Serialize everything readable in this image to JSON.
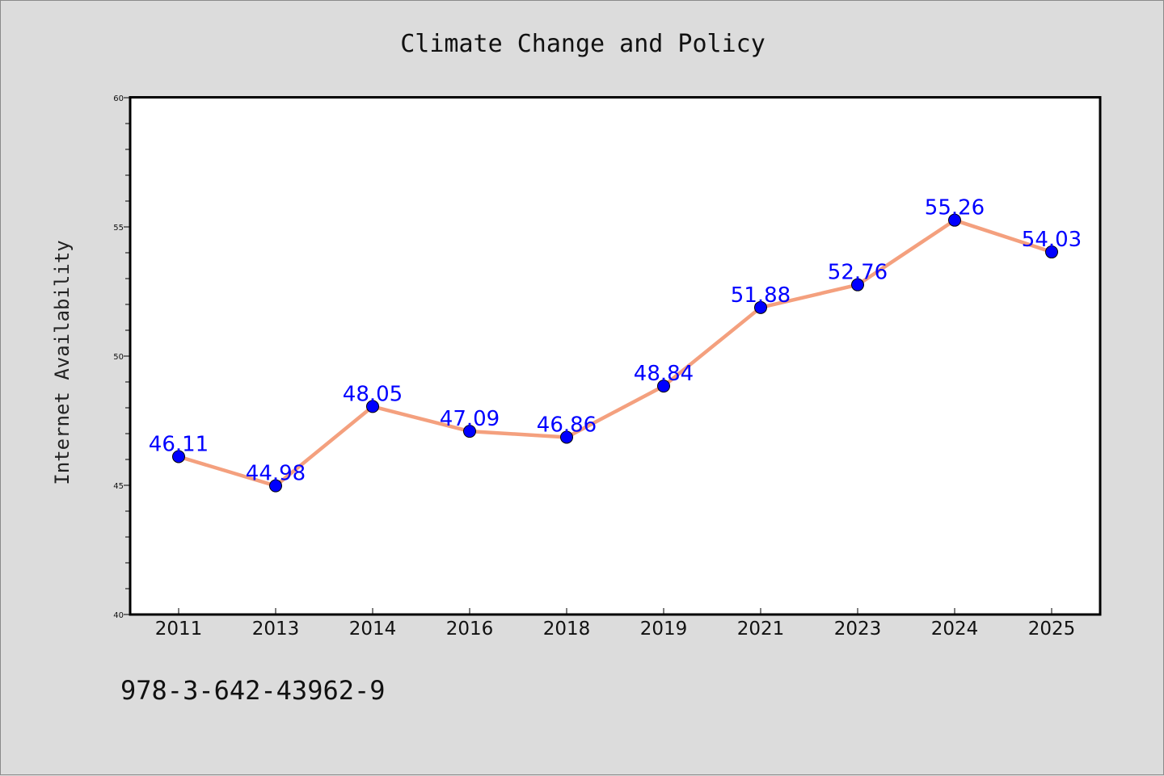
{
  "chart_data": {
    "type": "line",
    "title": "Climate Change and Policy",
    "xlabel": "",
    "ylabel": "Internet Availability",
    "categories": [
      "2011",
      "2013",
      "2014",
      "2016",
      "2018",
      "2019",
      "2021",
      "2023",
      "2024",
      "2025"
    ],
    "series": [
      {
        "values": [
          46.11,
          44.98,
          48.05,
          47.09,
          46.86,
          48.84,
          51.88,
          52.76,
          55.26,
          54.03
        ]
      }
    ],
    "data_labels": [
      "46.11",
      "44.98",
      "48.05",
      "47.09",
      "46.86",
      "48.84",
      "51.88",
      "52.76",
      "55.26",
      "54.03"
    ],
    "ylim": [
      40,
      60
    ],
    "yticks": [
      "40",
      "45",
      "50",
      "55",
      "60"
    ],
    "grid": false,
    "legend": "none",
    "colors": {
      "line": "#f4a07e",
      "marker": "#0000ff",
      "label": "#0000ff",
      "plot_background": "#ffffff",
      "figure_background": "#dcdcdc"
    }
  },
  "footer_text": "978-3-642-43962-9"
}
